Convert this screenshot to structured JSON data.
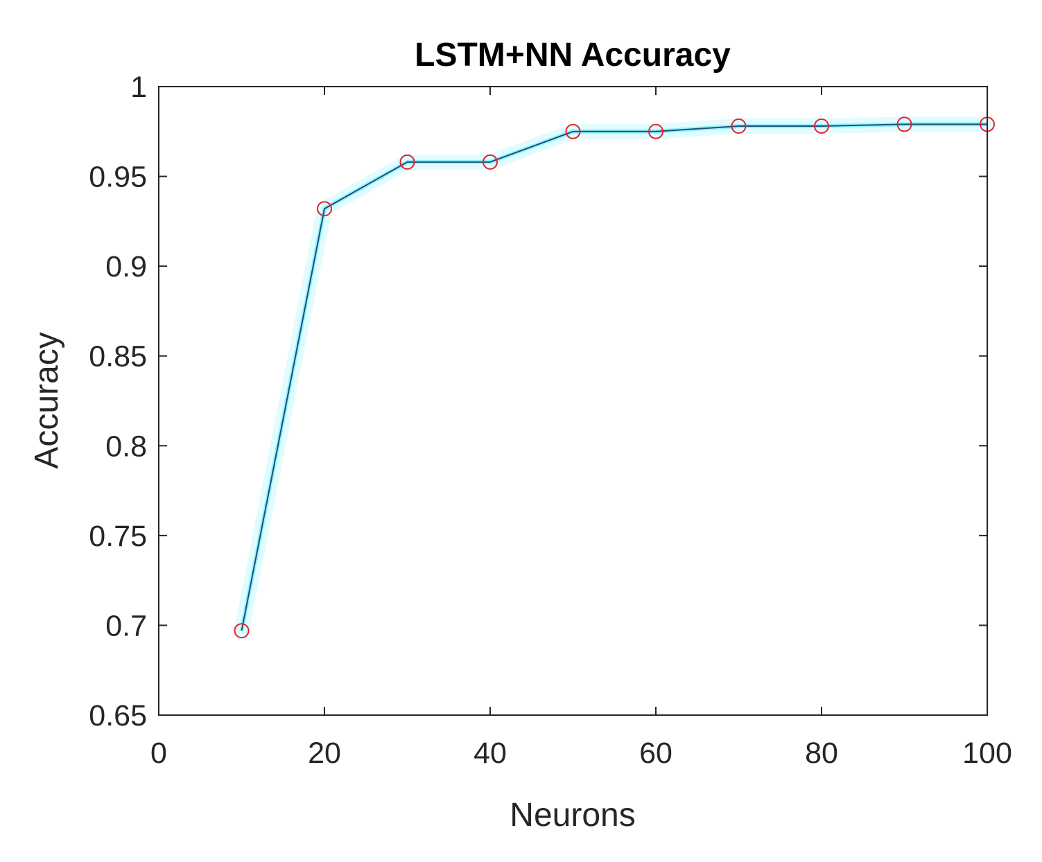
{
  "chart_data": {
    "type": "line",
    "title": "LSTM+NN Accuracy",
    "xlabel": "Neurons",
    "ylabel": "Accuracy",
    "xlim": [
      0,
      100
    ],
    "ylim": [
      0.65,
      1
    ],
    "xticks": [
      0,
      20,
      40,
      60,
      80,
      100
    ],
    "xtick_labels": [
      "0",
      "20",
      "40",
      "60",
      "80",
      "100"
    ],
    "yticks": [
      0.65,
      0.7,
      0.75,
      0.8,
      0.85,
      0.9,
      0.95,
      1
    ],
    "ytick_labels": [
      "0.65",
      "0.7",
      "0.75",
      "0.8",
      "0.85",
      "0.9",
      "0.95",
      "1"
    ],
    "grid": false,
    "line_color": "#1f4e79",
    "line_glow_color": "#00e5ff",
    "marker": "circle",
    "marker_color": "#e8202a",
    "series": [
      {
        "x": [
          10,
          20,
          30,
          40,
          50,
          60,
          70,
          80,
          90,
          100
        ],
        "y": [
          0.697,
          0.932,
          0.958,
          0.958,
          0.975,
          0.975,
          0.978,
          0.978,
          0.979,
          0.979
        ]
      }
    ]
  }
}
